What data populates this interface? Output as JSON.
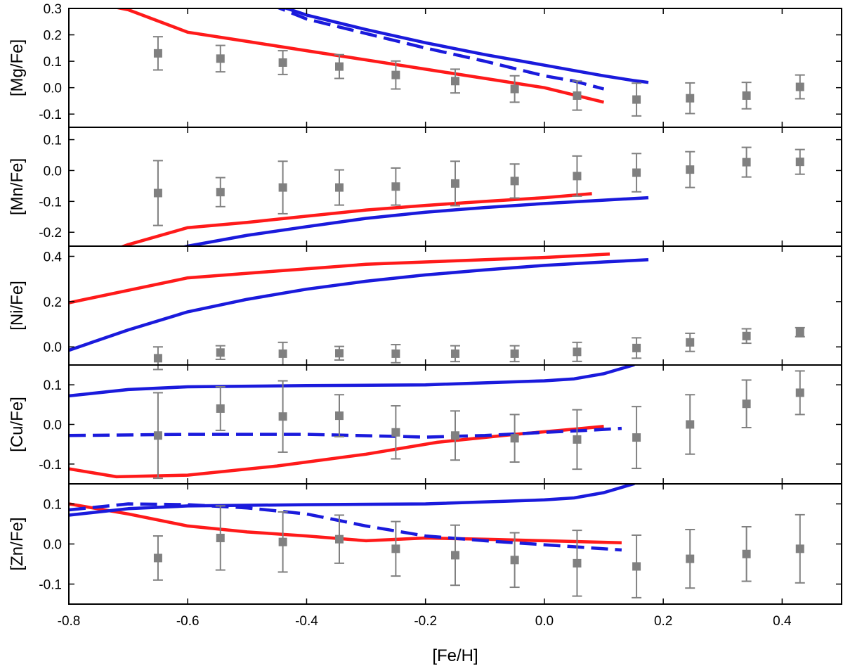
{
  "chart_data": {
    "type": "line",
    "shared_x": {
      "label": "[Fe/H]",
      "lim": [
        -0.8,
        0.5
      ],
      "ticks": [
        -0.8,
        -0.6,
        -0.4,
        -0.2,
        0.0,
        0.2,
        0.4
      ],
      "tick_labels": [
        "-0.8",
        "-0.6",
        "-0.4",
        "-0.2",
        "0.0",
        "0.2",
        "0.4"
      ]
    },
    "colors": {
      "data": "#808080",
      "red": "#ff1a1a",
      "blue": "#1a1adc"
    },
    "observations_x": [
      -0.65,
      -0.545,
      -0.44,
      -0.345,
      -0.25,
      -0.15,
      -0.05,
      0.055,
      0.155,
      0.245,
      0.34,
      0.43
    ],
    "panels": [
      {
        "ylabel": "[Mg/Fe]",
        "ylim": [
          -0.15,
          0.3
        ],
        "yticks": [
          -0.1,
          0.0,
          0.1,
          0.2,
          0.3
        ],
        "ytick_labels": [
          "-0.1",
          "0.0",
          "0.1",
          "0.2",
          "0.3"
        ],
        "observations": {
          "y": [
            0.13,
            0.11,
            0.095,
            0.08,
            0.048,
            0.025,
            -0.005,
            -0.03,
            -0.045,
            -0.04,
            -0.03,
            0.003
          ],
          "err": [
            0.063,
            0.05,
            0.045,
            0.045,
            0.053,
            0.045,
            0.05,
            0.055,
            0.062,
            0.058,
            0.05,
            0.045
          ]
        },
        "series": [
          {
            "name": "red model",
            "color": "red",
            "dash": false,
            "x": [
              -0.8,
              -0.7,
              -0.6,
              -0.5,
              -0.4,
              -0.3,
              -0.2,
              -0.1,
              0.0,
              0.1
            ],
            "y": [
              0.34,
              0.295,
              0.21,
              0.175,
              0.14,
              0.105,
              0.07,
              0.035,
              0.0,
              -0.055
            ]
          },
          {
            "name": "blue model",
            "color": "blue",
            "dash": false,
            "x": [
              -0.5,
              -0.4,
              -0.3,
              -0.2,
              -0.1,
              0.0,
              0.05,
              0.1,
              0.15,
              0.175
            ],
            "y": [
              0.35,
              0.275,
              0.22,
              0.17,
              0.125,
              0.085,
              0.065,
              0.045,
              0.027,
              0.02
            ]
          },
          {
            "name": "blue dashed model",
            "color": "blue",
            "dash": true,
            "x": [
              -0.5,
              -0.4,
              -0.3,
              -0.2,
              -0.1,
              0.0,
              0.05,
              0.1
            ],
            "y": [
              0.35,
              0.26,
              0.205,
              0.15,
              0.1,
              0.045,
              0.025,
              -0.005
            ]
          }
        ]
      },
      {
        "ylabel": "[Mn/Fe]",
        "ylim": [
          -0.245,
          0.14
        ],
        "yticks": [
          -0.2,
          -0.1,
          0.0,
          0.1
        ],
        "ytick_labels": [
          "-0.2",
          "-0.1",
          "0.0",
          "0.1"
        ],
        "observations": {
          "y": [
            -0.073,
            -0.07,
            -0.055,
            -0.055,
            -0.052,
            -0.042,
            -0.034,
            -0.018,
            -0.007,
            0.003,
            0.027,
            0.028
          ],
          "err": [
            0.105,
            0.047,
            0.085,
            0.057,
            0.06,
            0.072,
            0.055,
            0.065,
            0.062,
            0.058,
            0.048,
            0.04
          ]
        },
        "series": [
          {
            "name": "red model",
            "color": "red",
            "dash": false,
            "x": [
              -0.8,
              -0.7,
              -0.6,
              -0.5,
              -0.4,
              -0.3,
              -0.2,
              -0.1,
              0.0,
              0.08
            ],
            "y": [
              -0.31,
              -0.24,
              -0.185,
              -0.168,
              -0.148,
              -0.128,
              -0.113,
              -0.1,
              -0.088,
              -0.075
            ]
          },
          {
            "name": "blue model",
            "color": "blue",
            "dash": false,
            "x": [
              -0.8,
              -0.7,
              -0.6,
              -0.5,
              -0.4,
              -0.3,
              -0.2,
              -0.1,
              0.0,
              0.1,
              0.175
            ],
            "y": [
              -0.34,
              -0.29,
              -0.245,
              -0.21,
              -0.182,
              -0.155,
              -0.135,
              -0.12,
              -0.107,
              -0.096,
              -0.088
            ]
          }
        ]
      },
      {
        "ylabel": "[Ni/Fe]",
        "ylim": [
          -0.08,
          0.445
        ],
        "yticks": [
          0.0,
          0.2,
          0.4
        ],
        "ytick_labels": [
          "0.0",
          "0.2",
          "0.4"
        ],
        "observations": {
          "y": [
            -0.05,
            -0.025,
            -0.03,
            -0.028,
            -0.03,
            -0.03,
            -0.03,
            -0.022,
            -0.005,
            0.02,
            0.048,
            0.065
          ],
          "err": [
            0.05,
            0.03,
            0.05,
            0.03,
            0.04,
            0.035,
            0.035,
            0.042,
            0.045,
            0.04,
            0.032,
            0.02
          ]
        },
        "series": [
          {
            "name": "red model",
            "color": "red",
            "dash": false,
            "x": [
              -0.8,
              -0.7,
              -0.6,
              -0.5,
              -0.4,
              -0.3,
              -0.2,
              -0.1,
              0.0,
              0.11
            ],
            "y": [
              0.195,
              0.25,
              0.305,
              0.325,
              0.345,
              0.365,
              0.375,
              0.385,
              0.395,
              0.41
            ]
          },
          {
            "name": "blue model",
            "color": "blue",
            "dash": false,
            "x": [
              -0.8,
              -0.7,
              -0.6,
              -0.5,
              -0.4,
              -0.3,
              -0.2,
              -0.1,
              0.0,
              0.1,
              0.175
            ],
            "y": [
              -0.015,
              0.075,
              0.155,
              0.21,
              0.255,
              0.29,
              0.318,
              0.34,
              0.36,
              0.375,
              0.385
            ]
          }
        ]
      },
      {
        "ylabel": "[Cu/Fe]",
        "ylim": [
          -0.15,
          0.15
        ],
        "yticks": [
          -0.1,
          0.0,
          0.1
        ],
        "ytick_labels": [
          "-0.1",
          "0.0",
          "0.1"
        ],
        "observations": {
          "y": [
            -0.028,
            0.04,
            0.02,
            0.022,
            -0.02,
            -0.028,
            -0.035,
            -0.038,
            -0.033,
            0.0,
            0.052,
            0.08
          ],
          "err": [
            0.108,
            0.055,
            0.09,
            0.053,
            0.067,
            0.062,
            0.06,
            0.075,
            0.078,
            0.075,
            0.06,
            0.055
          ]
        },
        "series": [
          {
            "name": "red model",
            "color": "red",
            "dash": false,
            "x": [
              -0.8,
              -0.72,
              -0.6,
              -0.45,
              -0.3,
              -0.18,
              -0.05,
              0.05,
              0.1
            ],
            "y": [
              -0.112,
              -0.132,
              -0.128,
              -0.105,
              -0.075,
              -0.045,
              -0.025,
              -0.012,
              -0.005
            ]
          },
          {
            "name": "blue model",
            "color": "blue",
            "dash": false,
            "x": [
              -0.8,
              -0.7,
              -0.6,
              -0.4,
              -0.2,
              0.0,
              0.05,
              0.1,
              0.15,
              0.2,
              0.25
            ],
            "y": [
              0.072,
              0.088,
              0.095,
              0.098,
              0.1,
              0.11,
              0.115,
              0.128,
              0.15,
              0.2,
              0.26
            ]
          },
          {
            "name": "blue dashed model",
            "color": "blue",
            "dash": true,
            "x": [
              -0.8,
              -0.6,
              -0.4,
              -0.2,
              -0.1,
              0.0,
              0.07,
              0.13
            ],
            "y": [
              -0.028,
              -0.025,
              -0.025,
              -0.032,
              -0.028,
              -0.02,
              -0.015,
              -0.01
            ]
          }
        ]
      },
      {
        "ylabel": "[Zn/Fe]",
        "ylim": [
          -0.15,
          0.15
        ],
        "yticks": [
          -0.1,
          0.0,
          0.1
        ],
        "ytick_labels": [
          "-0.1",
          "0.0",
          "0.1"
        ],
        "observations": {
          "y": [
            -0.035,
            0.015,
            0.005,
            0.012,
            -0.012,
            -0.028,
            -0.04,
            -0.048,
            -0.056,
            -0.037,
            -0.025,
            -0.012
          ],
          "err": [
            0.055,
            0.08,
            0.075,
            0.06,
            0.068,
            0.075,
            0.068,
            0.082,
            0.078,
            0.073,
            0.068,
            0.085
          ]
        },
        "series": [
          {
            "name": "red model",
            "color": "red",
            "dash": false,
            "x": [
              -0.8,
              -0.7,
              -0.6,
              -0.5,
              -0.4,
              -0.3,
              -0.2,
              -0.1,
              0.0,
              0.13
            ],
            "y": [
              0.1,
              0.075,
              0.045,
              0.03,
              0.02,
              0.008,
              0.015,
              0.012,
              0.008,
              0.003
            ]
          },
          {
            "name": "blue model",
            "color": "blue",
            "dash": false,
            "x": [
              -0.8,
              -0.7,
              -0.6,
              -0.4,
              -0.2,
              0.0,
              0.05,
              0.1,
              0.15,
              0.2,
              0.25
            ],
            "y": [
              0.072,
              0.088,
              0.095,
              0.098,
              0.1,
              0.11,
              0.115,
              0.128,
              0.15,
              0.2,
              0.26
            ]
          },
          {
            "name": "blue dashed model",
            "color": "blue",
            "dash": true,
            "x": [
              -0.8,
              -0.7,
              -0.6,
              -0.5,
              -0.4,
              -0.3,
              -0.2,
              -0.1,
              0.0,
              0.13
            ],
            "y": [
              0.085,
              0.1,
              0.098,
              0.09,
              0.075,
              0.045,
              0.02,
              0.008,
              -0.002,
              -0.015
            ]
          }
        ]
      }
    ]
  }
}
